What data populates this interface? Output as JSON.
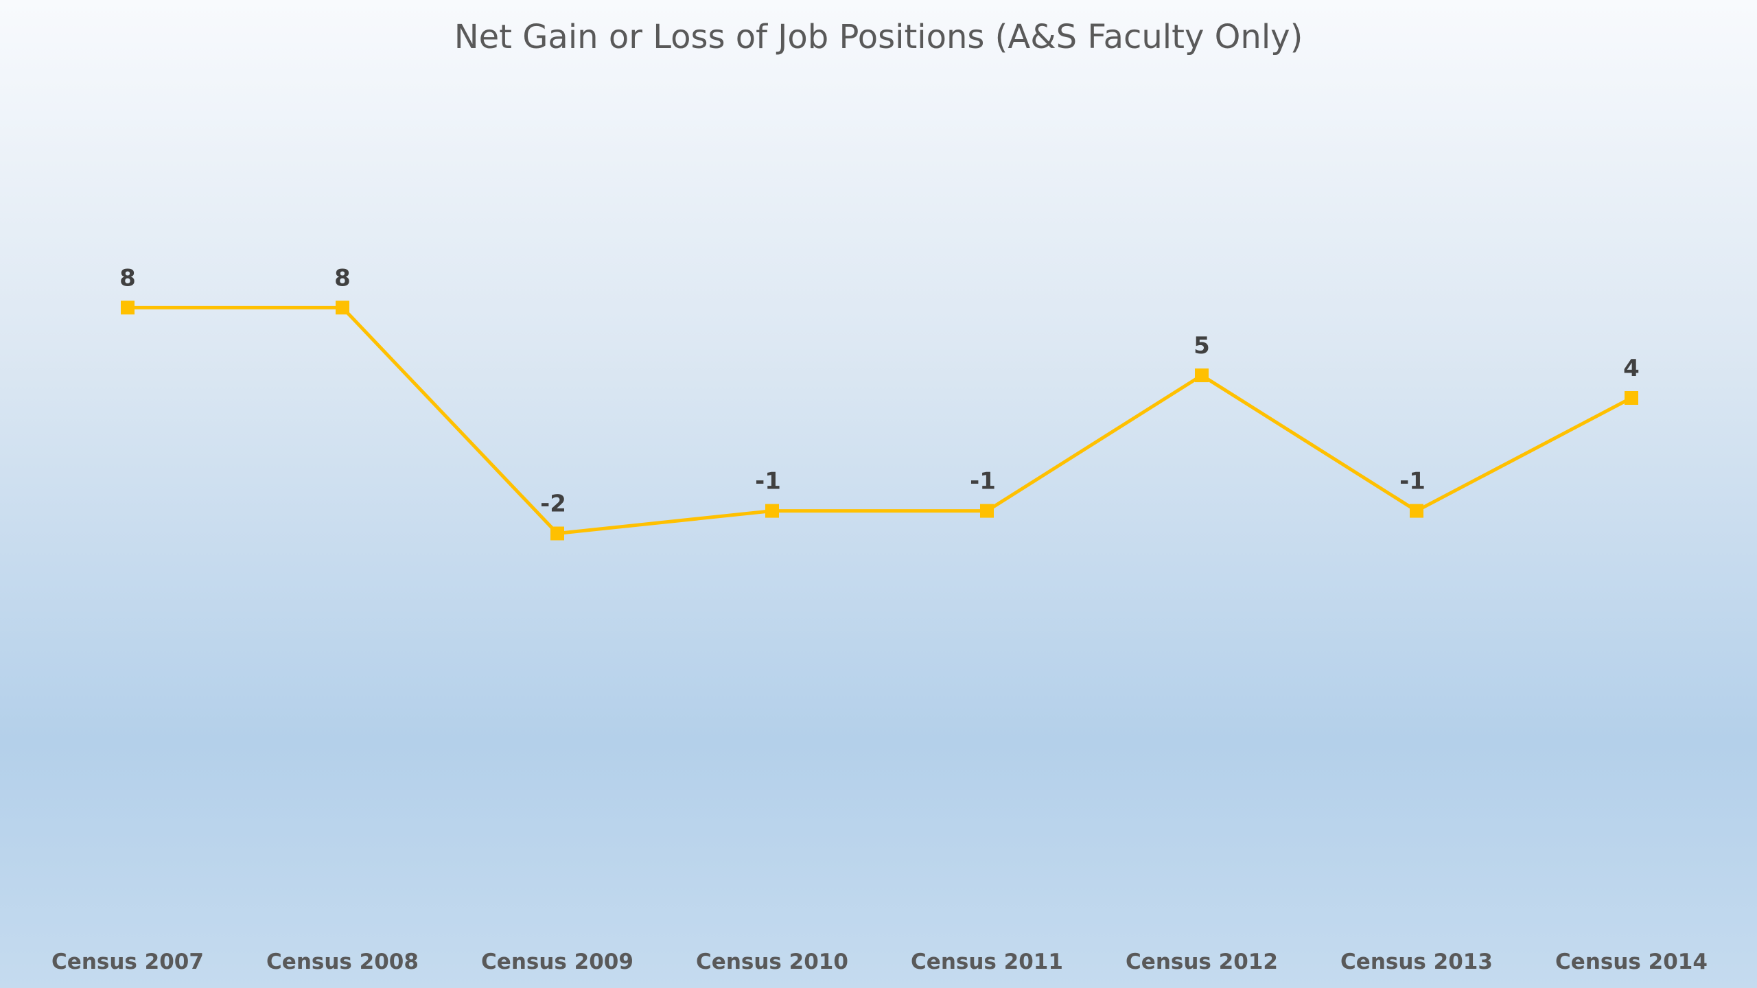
{
  "chart_data": {
    "type": "line",
    "title": "Net Gain or Loss of Job Positions (A&S Faculty Only)",
    "xlabel": "",
    "ylabel": "",
    "categories": [
      "Census 2007",
      "Census 2008",
      "Census 2009",
      "Census 2010",
      "Census 2011",
      "Census 2012",
      "Census 2013",
      "Census 2014"
    ],
    "series": [
      {
        "values": [
          8,
          8,
          -2,
          -1,
          -1,
          5,
          -1,
          4
        ],
        "color": "#FFC000",
        "marker": "square"
      }
    ],
    "data_labels": [
      "8",
      "8",
      "-2",
      "-1",
      "-1",
      "5",
      "-1",
      "4"
    ],
    "ylim": [
      -20,
      16
    ],
    "grid": false,
    "legend": "none",
    "y_axis_visible": false
  }
}
